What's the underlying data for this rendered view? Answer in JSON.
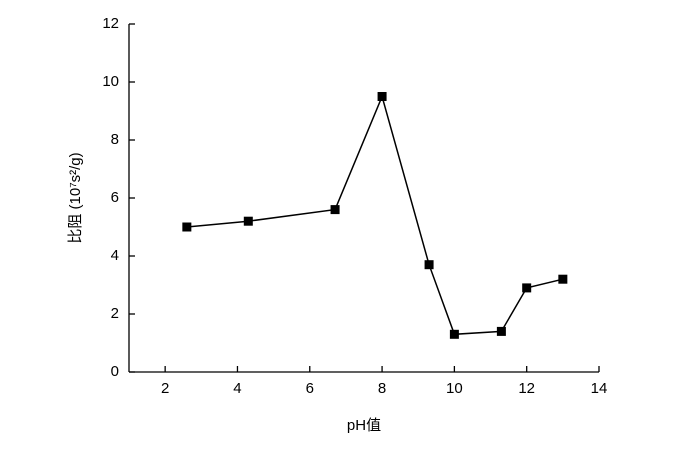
{
  "chart_data": {
    "type": "line",
    "x_label": "pH值",
    "y_label": "比阻 (10⁷s²/g)",
    "series": [
      {
        "color": "#000000",
        "x": [
          2.6,
          4.3,
          6.7,
          8,
          9.3,
          10,
          11.3,
          12,
          13
        ],
        "values": [
          5.0,
          5.2,
          5.6,
          9.5,
          3.7,
          1.3,
          1.4,
          2.9,
          3.2
        ]
      }
    ],
    "xlim": [
      1,
      14
    ],
    "xticks": [
      2,
      4,
      6,
      8,
      10,
      12,
      14
    ],
    "ylim": [
      0,
      12
    ],
    "yticks": [
      0,
      2,
      4,
      6,
      8,
      10,
      12
    ]
  }
}
